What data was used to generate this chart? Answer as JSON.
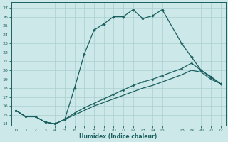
{
  "xlabel": "Humidex (Indice chaleur)",
  "background_color": "#cce8e8",
  "grid_color": "#aacfcf",
  "line_color": "#1a5f5f",
  "xtick_labels": [
    "0",
    "1",
    "2",
    "3",
    "4",
    "5",
    "6",
    "7",
    "8",
    "9",
    "10",
    "11",
    "12",
    "13",
    "14",
    "15",
    "",
    "18",
    "19",
    "20",
    "21",
    "22"
  ],
  "ytick_labels": [
    "14",
    "15",
    "16",
    "17",
    "18",
    "19",
    "20",
    "21",
    "22",
    "23",
    "24",
    "25",
    "26",
    "27"
  ],
  "ylim": [
    13.8,
    27.6
  ],
  "line1_x": [
    0,
    1,
    2,
    3,
    4,
    5,
    6,
    7,
    8,
    9,
    10,
    11,
    12,
    13,
    14,
    15,
    17,
    18,
    19,
    20,
    21
  ],
  "line1_y": [
    15.5,
    14.8,
    14.8,
    14.2,
    14.0,
    14.5,
    18.0,
    21.8,
    24.5,
    25.2,
    26.0,
    26.0,
    26.8,
    25.8,
    26.1,
    26.8,
    23.0,
    21.5,
    20.0,
    19.2,
    18.5
  ],
  "line2_x": [
    0,
    1,
    2,
    3,
    4,
    5,
    6,
    7,
    8,
    9,
    10,
    11,
    12,
    13,
    14,
    15,
    17,
    18,
    19,
    20,
    21
  ],
  "line2_y": [
    15.5,
    14.8,
    14.8,
    14.2,
    14.0,
    14.5,
    15.2,
    15.8,
    16.3,
    16.8,
    17.3,
    17.8,
    18.3,
    18.7,
    19.0,
    19.4,
    20.2,
    20.8,
    20.0,
    19.3,
    18.5
  ],
  "line3_x": [
    0,
    1,
    2,
    3,
    4,
    5,
    6,
    7,
    8,
    9,
    10,
    11,
    12,
    13,
    14,
    15,
    17,
    18,
    19,
    20,
    21
  ],
  "line3_y": [
    15.5,
    14.8,
    14.8,
    14.2,
    14.0,
    14.5,
    15.0,
    15.5,
    16.0,
    16.4,
    16.8,
    17.2,
    17.6,
    18.0,
    18.3,
    18.7,
    19.5,
    20.0,
    19.8,
    19.0,
    18.5
  ]
}
